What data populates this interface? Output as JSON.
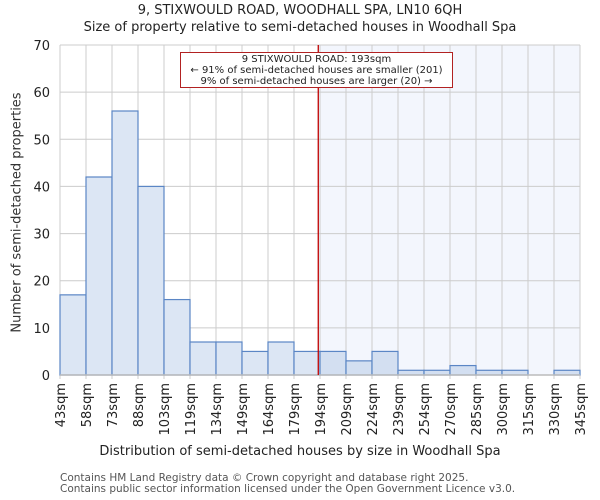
{
  "header": {
    "title": "9, STIXWOULD ROAD, WOODHALL SPA, LN10 6QH",
    "subtitle": "Size of property relative to semi-detached houses in Woodhall Spa"
  },
  "annotation": {
    "line1": "9 STIXWOULD ROAD: 193sqm",
    "line2": "← 91% of semi-detached houses are smaller (201)",
    "line3": "9% of semi-detached houses are larger (20) →"
  },
  "footer": {
    "line1": "Contains HM Land Registry data © Crown copyright and database right 2025.",
    "line2": "Contains public sector information licensed under the Open Government Licence v3.0."
  },
  "colors": {
    "bar_fill": "#dce6f4",
    "bar_fill_right": "#d3dff1",
    "bar_edge": "#5b86c5",
    "marker": "#c00000",
    "shade": "#f3f6fd",
    "grid": "#cccccc"
  },
  "chart_data": {
    "type": "bar",
    "title": "Size of property relative to semi-detached houses in Woodhall Spa",
    "xlabel": "Distribution of semi-detached houses by size in Woodhall Spa",
    "ylabel": "Number of semi-detached properties",
    "categories": [
      "43sqm",
      "58sqm",
      "73sqm",
      "88sqm",
      "103sqm",
      "119sqm",
      "134sqm",
      "149sqm",
      "164sqm",
      "179sqm",
      "194sqm",
      "209sqm",
      "224sqm",
      "239sqm",
      "254sqm",
      "270sqm",
      "285sqm",
      "300sqm",
      "315sqm",
      "330sqm",
      "345sqm"
    ],
    "values": [
      17,
      42,
      56,
      40,
      16,
      7,
      7,
      5,
      7,
      5,
      5,
      3,
      5,
      1,
      1,
      2,
      1,
      1,
      0,
      1
    ],
    "ylim": [
      0,
      70
    ],
    "yticks": [
      0,
      10,
      20,
      30,
      40,
      50,
      60,
      70
    ],
    "grid": true,
    "marker_value": 193,
    "marker_label": "9 STIXWOULD ROAD: 193sqm"
  }
}
